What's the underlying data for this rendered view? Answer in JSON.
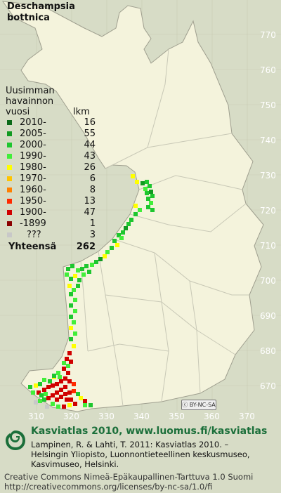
{
  "species": {
    "line1": "Deschampsia",
    "line2": "bottnica"
  },
  "legend": {
    "header": [
      "Uusimman",
      "havainnon",
      "vuosi"
    ],
    "count_header": "lkm",
    "rows": [
      {
        "label": "2010-",
        "count": "16",
        "color": "#0b6a18"
      },
      {
        "label": "2005-",
        "count": "55",
        "color": "#119a21"
      },
      {
        "label": "2000-",
        "count": "44",
        "color": "#1ec62f"
      },
      {
        "label": "1990-",
        "count": "43",
        "color": "#42ee3a"
      },
      {
        "label": "1980-",
        "count": "26",
        "color": "#ffff00"
      },
      {
        "label": "1970-",
        "count": "6",
        "color": "#ffc400"
      },
      {
        "label": "1960-",
        "count": "8",
        "color": "#ff8000"
      },
      {
        "label": "1950-",
        "count": "13",
        "color": "#ff2a00"
      },
      {
        "label": "1900-",
        "count": "47",
        "color": "#d00000"
      },
      {
        "label": "-1899",
        "count": "1",
        "color": "#8a0000"
      },
      {
        "label": "???",
        "count": "3",
        "color": "#c8c8c8"
      }
    ],
    "total_label": "Yhteensä",
    "total_count": "262"
  },
  "y_grid_labels": [
    "770",
    "760",
    "750",
    "740",
    "730",
    "720",
    "710",
    "700",
    "690",
    "680",
    "670"
  ],
  "x_grid_labels": [
    "310",
    "320",
    "330",
    "340",
    "350",
    "360",
    "370"
  ],
  "license_badge": "BY-NC-SA",
  "footer": {
    "title": "Kasviatlas 2010, www.luomus.fi/kasviatlas",
    "citation1": "Lampinen, R. & Lahti, T. 2011: Kasviatlas 2010. –",
    "citation2": "Helsingin Yliopisto, Luonnontieteellinen keskusmuseo,",
    "citation3": "Kasvimuseo, Helsinki.",
    "cc1": "Creative Commons Nimeä-Epäkaupallinen-Tarttuva 1.0 Suomi",
    "cc2": "http://creativecommons.org/licenses/by-nc-sa/1.0/fi"
  },
  "colors": {
    "land": "#f4f3dc",
    "background": "#d7dcc6",
    "grid": "#c9cbb3",
    "border": "#b8b8a8"
  }
}
